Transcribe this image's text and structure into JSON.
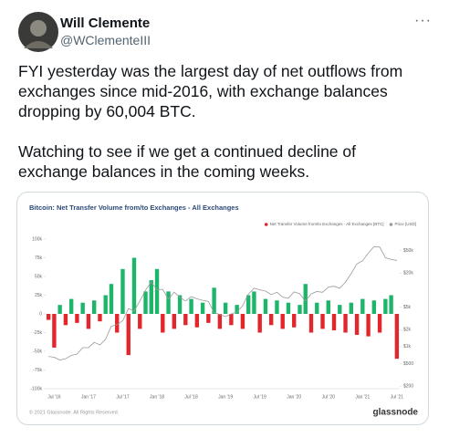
{
  "tweet": {
    "name": "Will Clemente",
    "handle": "@WClementeIII",
    "paragraphs": [
      [
        "FYI yesterday was the largest day of net outflows from",
        "exchanges since mid-2016, with exchange balances",
        "dropping by 60,004 BTC."
      ],
      [
        "Watching to see if we get a continued decline of",
        "exchange balances in the coming weeks."
      ]
    ]
  },
  "chart_data": {
    "type": "bar",
    "title": "Bitcoin: Net Transfer Volume from/to Exchanges - All Exchanges",
    "categories": [
      null,
      "Jul '16",
      null,
      null,
      null,
      null,
      null,
      "Jan '17",
      null,
      null,
      null,
      null,
      null,
      "Jul '17",
      null,
      null,
      null,
      null,
      null,
      "Jan '18",
      null,
      null,
      null,
      null,
      null,
      "Jul '18",
      null,
      null,
      null,
      null,
      null,
      "Jan '19",
      null,
      null,
      null,
      null,
      null,
      "Jul '19",
      null,
      null,
      null,
      null,
      null,
      "Jan '20",
      null,
      null,
      null,
      null,
      null,
      "Jul '20",
      null,
      null,
      null,
      null,
      null,
      "Jan '21",
      null,
      null,
      null,
      null,
      null,
      "Jul '21"
    ],
    "series": [
      {
        "name": "Net Transfer Volume from/to Exchanges - All Exchanges [BTC]",
        "color": "#1db56a",
        "negative_color": "#e3262b",
        "values": [
          -8000,
          -45000,
          12000,
          -15000,
          20000,
          -12000,
          15000,
          -20000,
          18000,
          -10000,
          25000,
          40000,
          -25000,
          60000,
          -55000,
          75000,
          -20000,
          30000,
          45000,
          60000,
          -25000,
          30000,
          -20000,
          25000,
          -15000,
          20000,
          -18000,
          15000,
          -12000,
          35000,
          -20000,
          15000,
          -15000,
          12000,
          -20000,
          25000,
          30000,
          -25000,
          20000,
          -15000,
          18000,
          -20000,
          15000,
          -18000,
          12000,
          40000,
          -25000,
          15000,
          -20000,
          18000,
          -22000,
          12000,
          -25000,
          15000,
          -28000,
          20000,
          -30000,
          18000,
          -25000,
          20000,
          25000,
          -60000
        ]
      },
      {
        "name": "Price [USD]",
        "type": "line",
        "axis": "y2",
        "color": "#9a9a9a",
        "values": [
          670,
          650,
          580,
          610,
          700,
          740,
          960,
          960,
          1190,
          1070,
          1350,
          2300,
          2450,
          2870,
          4700,
          4300,
          6400,
          10000,
          14000,
          10200,
          10300,
          6900,
          9200,
          7500,
          6400,
          7700,
          7000,
          6600,
          6300,
          4000,
          3700,
          3400,
          3800,
          4100,
          5300,
          8500,
          10800,
          10100,
          9600,
          8300,
          9200,
          7500,
          7200,
          9300,
          8600,
          6400,
          8600,
          9450,
          9150,
          11300,
          11700,
          10800,
          13800,
          19700,
          29000,
          33100,
          45200,
          58800,
          57700,
          37300,
          35000,
          33500
        ]
      }
    ],
    "ylim": [
      -100000,
      100000
    ],
    "yticks": [
      {
        "value": 100000,
        "label": "100k"
      },
      {
        "value": 75000,
        "label": "75k"
      },
      {
        "value": 50000,
        "label": "50k"
      },
      {
        "value": 25000,
        "label": "25k"
      },
      0,
      {
        "value": -25000,
        "label": "-25k"
      },
      {
        "value": -50000,
        "label": "-50k"
      },
      {
        "value": -75000,
        "label": "-75k"
      },
      {
        "value": -100000,
        "label": "-100k"
      }
    ],
    "y2lim": [
      180,
      80000
    ],
    "y2log": true,
    "y2ticks": [
      {
        "value": 50000,
        "label": "$50k"
      },
      {
        "value": 20000,
        "label": "$20k"
      },
      {
        "value": 5000,
        "label": "$5k"
      },
      {
        "value": 2000,
        "label": "$2k"
      },
      {
        "value": 1000,
        "label": "$1k"
      },
      {
        "value": 500,
        "label": "$500"
      },
      {
        "value": 200,
        "label": "$200"
      }
    ],
    "legend": "top-right",
    "grid": false,
    "footer": "© 2021 Glassnode. All Rights Reserved.",
    "brand": "glassnode"
  }
}
